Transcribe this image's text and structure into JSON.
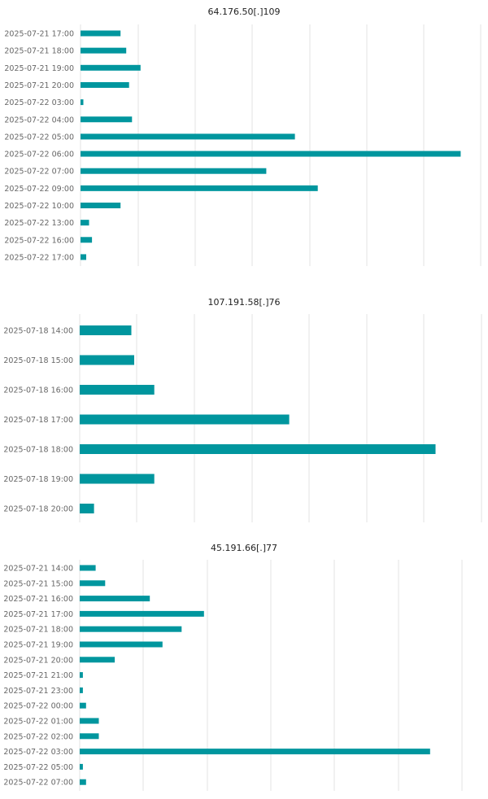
{
  "colors": {
    "bar": "#00969e",
    "grid": "#e3e3e3",
    "label": "#666666",
    "title": "#222222"
  },
  "chart_data": [
    {
      "type": "bar",
      "orientation": "horizontal",
      "title": "64.176.50[.]109",
      "categories": [
        "2025-07-21 17:00",
        "2025-07-21 18:00",
        "2025-07-21 19:00",
        "2025-07-21 20:00",
        "2025-07-22 03:00",
        "2025-07-22 04:00",
        "2025-07-22 05:00",
        "2025-07-22 06:00",
        "2025-07-22 07:00",
        "2025-07-22 09:00",
        "2025-07-22 10:00",
        "2025-07-22 13:00",
        "2025-07-22 16:00",
        "2025-07-22 17:00"
      ],
      "values": [
        14,
        16,
        21,
        17,
        1,
        18,
        75,
        133,
        65,
        83,
        14,
        3,
        4,
        2
      ],
      "xlim": [
        0,
        140
      ],
      "grid": true,
      "xlabel": "",
      "ylabel": ""
    },
    {
      "type": "bar",
      "orientation": "horizontal",
      "title": "107.191.58[.]76",
      "categories": [
        "2025-07-18 14:00",
        "2025-07-18 15:00",
        "2025-07-18 16:00",
        "2025-07-18 17:00",
        "2025-07-18 18:00",
        "2025-07-18 19:00",
        "2025-07-18 20:00"
      ],
      "values": [
        18,
        19,
        26,
        73,
        124,
        26,
        5
      ],
      "xlim": [
        0,
        140
      ],
      "grid": true,
      "xlabel": "",
      "ylabel": ""
    },
    {
      "type": "bar",
      "orientation": "horizontal",
      "title": "45.191.66[.]77",
      "categories": [
        "2025-07-21 14:00",
        "2025-07-21 15:00",
        "2025-07-21 16:00",
        "2025-07-21 17:00",
        "2025-07-21 18:00",
        "2025-07-21 19:00",
        "2025-07-21 20:00",
        "2025-07-21 21:00",
        "2025-07-21 23:00",
        "2025-07-22 00:00",
        "2025-07-22 01:00",
        "2025-07-22 02:00",
        "2025-07-22 03:00",
        "2025-07-22 05:00",
        "2025-07-22 07:00"
      ],
      "values": [
        5,
        8,
        22,
        39,
        32,
        26,
        11,
        1,
        1,
        2,
        6,
        6,
        110,
        1,
        2
      ],
      "xlim": [
        0,
        120
      ],
      "grid": true,
      "xlabel": "",
      "ylabel": ""
    }
  ]
}
